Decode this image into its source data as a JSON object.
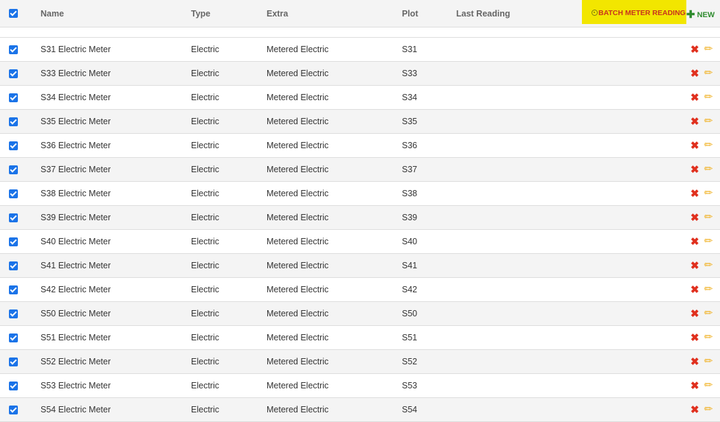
{
  "header": {
    "name": "Name",
    "type": "Type",
    "extra": "Extra",
    "plot": "Plot",
    "last_reading": "Last Reading",
    "batch_label": "BATCH METER READING",
    "new_label": "NEW"
  },
  "colors": {
    "batch_bg": "#f2e600",
    "batch_text": "#c8321e",
    "new": "#2e8b2e",
    "checkbox": "#1a73e8"
  },
  "rows": [
    {
      "name": "S31 Electric Meter",
      "type": "Electric",
      "extra": "Metered Electric",
      "plot": "S31",
      "last_reading": ""
    },
    {
      "name": "S33 Electric Meter",
      "type": "Electric",
      "extra": "Metered Electric",
      "plot": "S33",
      "last_reading": ""
    },
    {
      "name": "S34 Electric Meter",
      "type": "Electric",
      "extra": "Metered Electric",
      "plot": "S34",
      "last_reading": ""
    },
    {
      "name": "S35 Electric Meter",
      "type": "Electric",
      "extra": "Metered Electric",
      "plot": "S35",
      "last_reading": ""
    },
    {
      "name": "S36 Electric Meter",
      "type": "Electric",
      "extra": "Metered Electric",
      "plot": "S36",
      "last_reading": ""
    },
    {
      "name": "S37 Electric Meter",
      "type": "Electric",
      "extra": "Metered Electric",
      "plot": "S37",
      "last_reading": ""
    },
    {
      "name": "S38 Electric Meter",
      "type": "Electric",
      "extra": "Metered Electric",
      "plot": "S38",
      "last_reading": ""
    },
    {
      "name": "S39 Electric Meter",
      "type": "Electric",
      "extra": "Metered Electric",
      "plot": "S39",
      "last_reading": ""
    },
    {
      "name": "S40 Electric Meter",
      "type": "Electric",
      "extra": "Metered Electric",
      "plot": "S40",
      "last_reading": ""
    },
    {
      "name": "S41 Electric Meter",
      "type": "Electric",
      "extra": "Metered Electric",
      "plot": "S41",
      "last_reading": ""
    },
    {
      "name": "S42 Electric Meter",
      "type": "Electric",
      "extra": "Metered Electric",
      "plot": "S42",
      "last_reading": ""
    },
    {
      "name": "S50 Electric Meter",
      "type": "Electric",
      "extra": "Metered Electric",
      "plot": "S50",
      "last_reading": ""
    },
    {
      "name": "S51 Electric Meter",
      "type": "Electric",
      "extra": "Metered Electric",
      "plot": "S51",
      "last_reading": ""
    },
    {
      "name": "S52 Electric Meter",
      "type": "Electric",
      "extra": "Metered Electric",
      "plot": "S52",
      "last_reading": ""
    },
    {
      "name": "S53 Electric Meter",
      "type": "Electric",
      "extra": "Metered Electric",
      "plot": "S53",
      "last_reading": ""
    },
    {
      "name": "S54 Electric Meter",
      "type": "Electric",
      "extra": "Metered Electric",
      "plot": "S54",
      "last_reading": ""
    }
  ]
}
